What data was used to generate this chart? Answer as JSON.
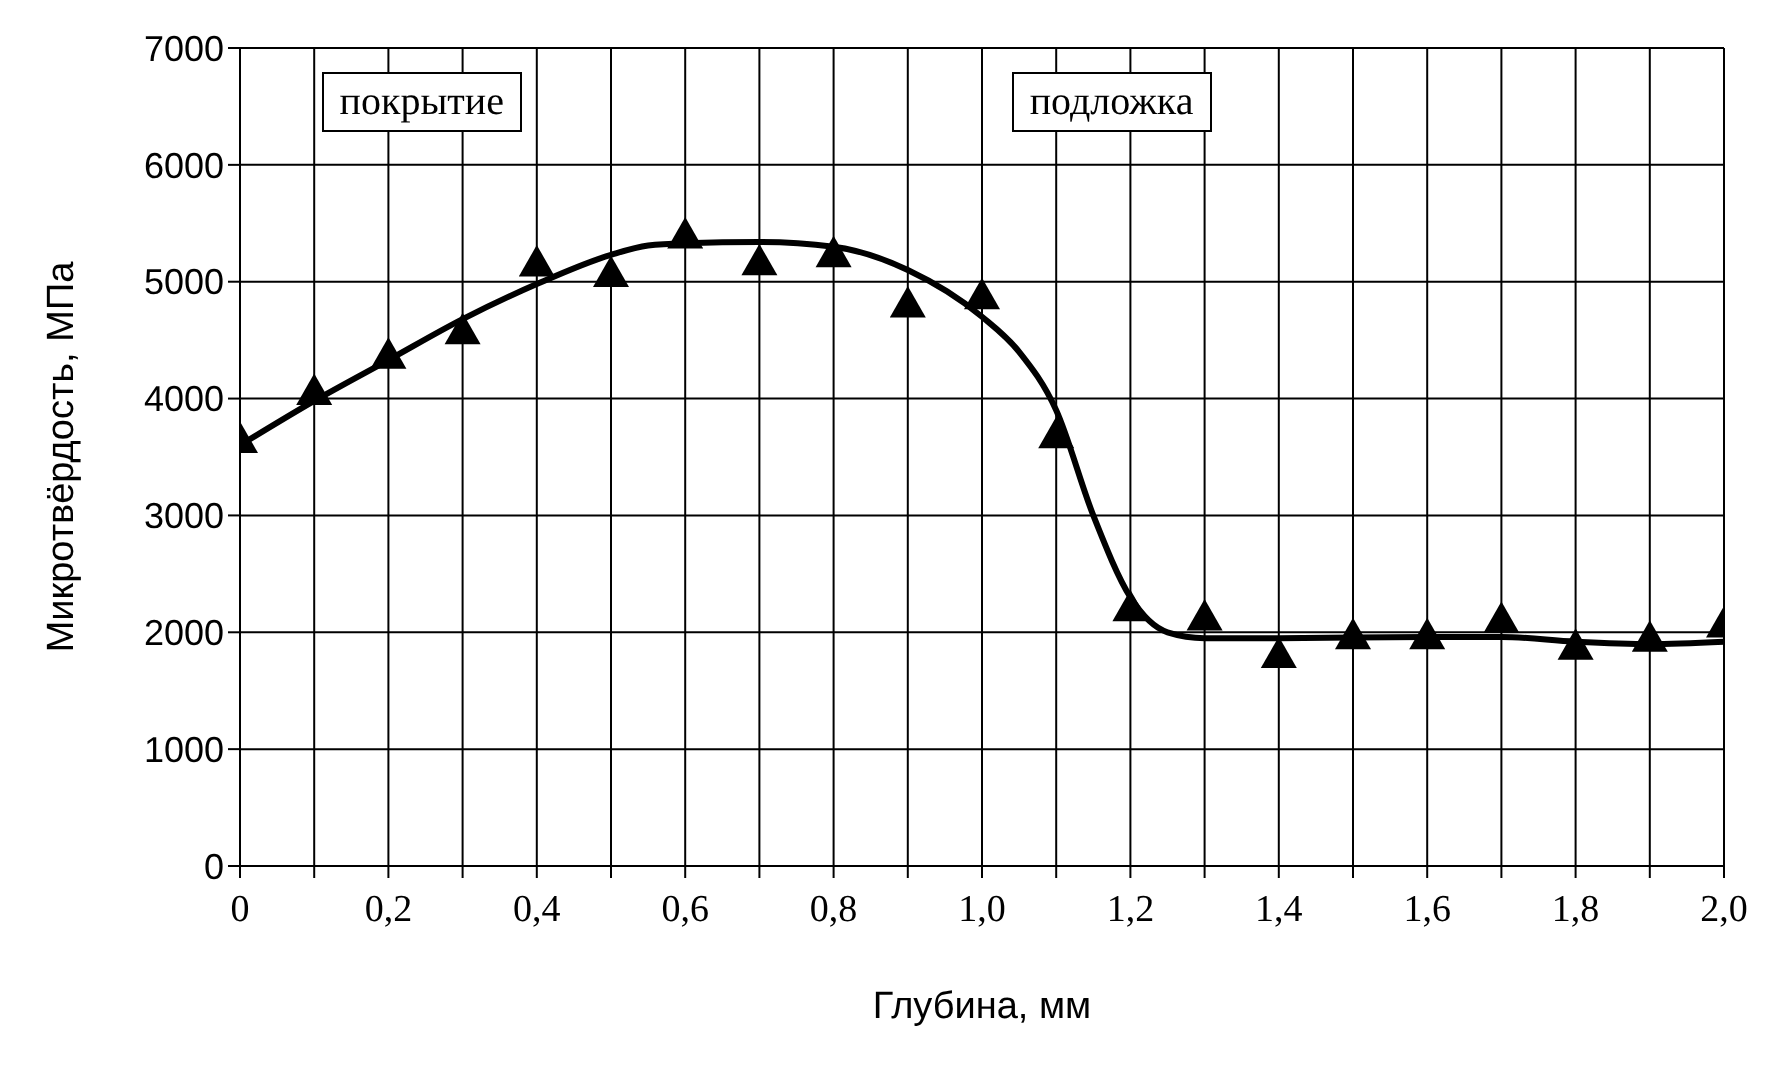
{
  "chart_data": {
    "type": "scatter",
    "xlabel": "Глубина, мм",
    "ylabel": "Микротвёрдость, МПа",
    "annotations": [
      "покрытие",
      "подложка"
    ],
    "x": [
      0,
      0.1,
      0.2,
      0.3,
      0.4,
      0.5,
      0.6,
      0.7,
      0.8,
      0.9,
      1.0,
      1.1,
      1.2,
      1.3,
      1.4,
      1.5,
      1.6,
      1.7,
      1.8,
      1.9,
      2.0
    ],
    "series": [
      {
        "color": "#000000",
        "marker": "triangle",
        "values": [
          3650,
          4060,
          4370,
          4580,
          5160,
          5070,
          5400,
          5170,
          5240,
          4810,
          4880,
          3690,
          2210,
          2130,
          1810,
          1970,
          1970,
          2110,
          1880,
          1950,
          2070
        ]
      },
      {
        "type": "line",
        "color": "#000000",
        "marker": "none",
        "line_style": "solid",
        "x": [
          0,
          0.1,
          0.2,
          0.3,
          0.4,
          0.5,
          0.55,
          0.6,
          0.7,
          0.8,
          0.9,
          1.0,
          1.05,
          1.1,
          1.15,
          1.2,
          1.25,
          1.3,
          1.4,
          1.6,
          1.7,
          1.8,
          1.9,
          2.0
        ],
        "values": [
          3600,
          3980,
          4330,
          4680,
          4980,
          5230,
          5310,
          5330,
          5340,
          5300,
          5100,
          4700,
          4400,
          3900,
          3000,
          2300,
          2000,
          1950,
          1950,
          1960,
          1960,
          1920,
          1900,
          1920
        ]
      }
    ],
    "xlim": [
      0,
      2.0
    ],
    "xticks": [
      {
        "value": 0,
        "label": "0"
      },
      {
        "value": 0.1,
        "label": null
      },
      {
        "value": 0.2,
        "label": "0,2"
      },
      {
        "value": 0.3,
        "label": null
      },
      {
        "value": 0.4,
        "label": "0,4"
      },
      {
        "value": 0.5,
        "label": null
      },
      {
        "value": 0.6,
        "label": "0,6"
      },
      {
        "value": 0.7,
        "label": null
      },
      {
        "value": 0.8,
        "label": "0,8"
      },
      {
        "value": 0.9,
        "label": null
      },
      {
        "value": 1.0,
        "label": "1,0"
      },
      {
        "value": 1.1,
        "label": null
      },
      {
        "value": 1.2,
        "label": "1,2"
      },
      {
        "value": 1.3,
        "label": null
      },
      {
        "value": 1.4,
        "label": "1,4"
      },
      {
        "value": 1.5,
        "label": null
      },
      {
        "value": 1.6,
        "label": "1,6"
      },
      {
        "value": 1.7,
        "label": null
      },
      {
        "value": 1.8,
        "label": "1,8"
      },
      {
        "value": 1.9,
        "label": null
      },
      {
        "value": 2.0,
        "label": "2,0"
      }
    ],
    "ylim": [
      0,
      7000
    ],
    "yticks": [
      0,
      1000,
      2000,
      3000,
      4000,
      5000,
      6000,
      7000
    ],
    "grid": true
  }
}
